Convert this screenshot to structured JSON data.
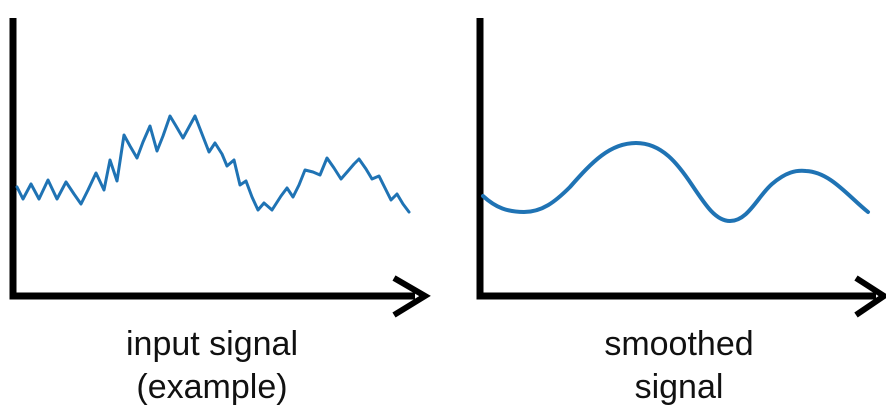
{
  "colors": {
    "signal": "#1f73b4",
    "axis": "#000000"
  },
  "panels": [
    {
      "caption_line1": "input signal",
      "caption_line2": "(example)"
    },
    {
      "caption_line1": "smoothed",
      "caption_line2": "signal"
    }
  ]
}
